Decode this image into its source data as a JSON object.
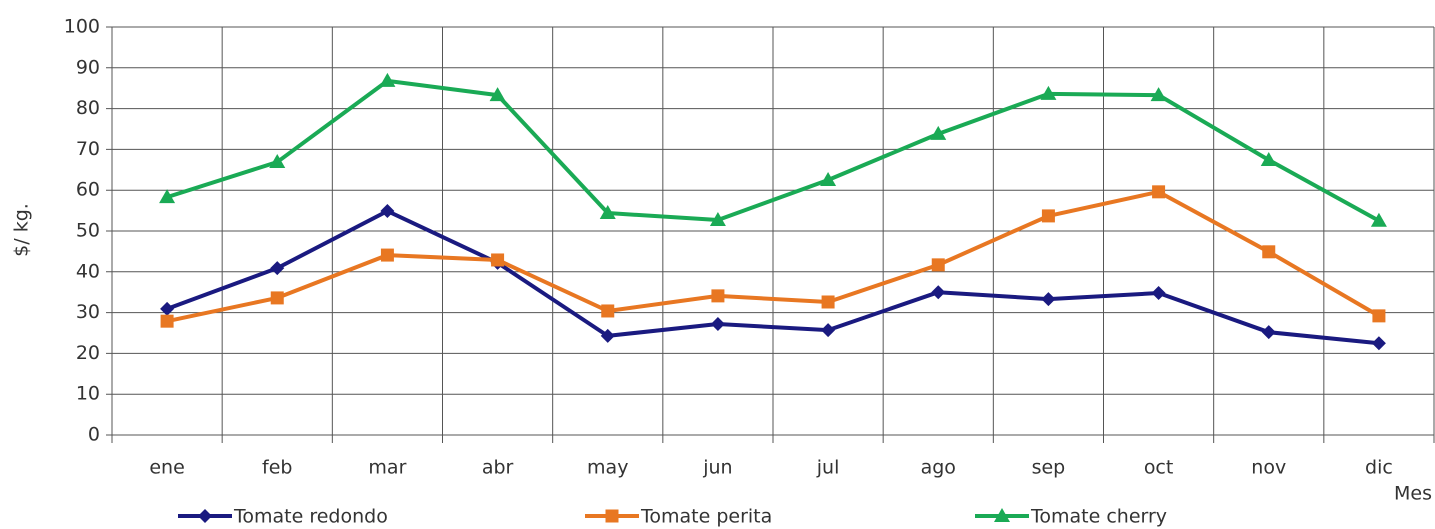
{
  "chart_data": {
    "type": "line",
    "categories": [
      "ene",
      "feb",
      "mar",
      "abr",
      "may",
      "jun",
      "jul",
      "ago",
      "sep",
      "oct",
      "nov",
      "dic"
    ],
    "series": [
      {
        "name": "Tomate redondo",
        "color": "#1a1a80",
        "marker": "diamond",
        "values": [
          30.9,
          40.9,
          54.9,
          42.2,
          24.3,
          27.2,
          25.7,
          35,
          33.3,
          34.8,
          25.2,
          22.5
        ]
      },
      {
        "name": "Tomate perita",
        "color": "#e87722",
        "marker": "square",
        "values": [
          27.9,
          33.6,
          44.1,
          42.9,
          30.4,
          34.1,
          32.6,
          41.7,
          53.7,
          59.6,
          44.9,
          29.2
        ]
      },
      {
        "name": "Tomate cherry",
        "color": "#1aaa55",
        "marker": "triangle",
        "values": [
          58.3,
          66.9,
          86.8,
          83.3,
          54.4,
          52.7,
          62.5,
          73.8,
          83.6,
          83.3,
          67.4,
          52.5
        ]
      }
    ],
    "y_label": "$/ kg.",
    "x_label": "Mes",
    "ylim": [
      0,
      100
    ],
    "yticks": [
      0,
      10,
      20,
      30,
      40,
      50,
      60,
      70,
      80,
      90,
      100
    ],
    "grid": true,
    "legend": "bottom"
  }
}
